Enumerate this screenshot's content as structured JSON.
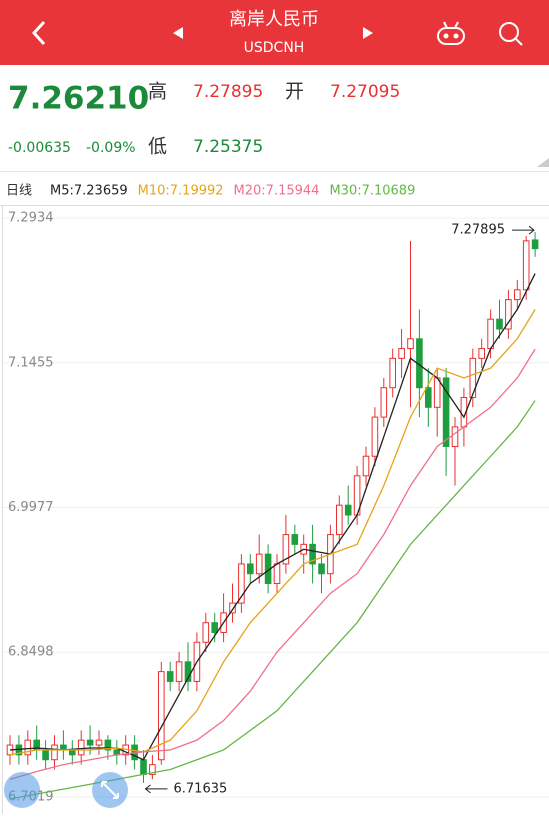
{
  "header": {
    "title": "离岸人民币",
    "subtitle": "USDCNH"
  },
  "quote": {
    "price": "7.26210",
    "change": "-0.00635",
    "change_pct": "-0.09%",
    "high_label": "高",
    "high": "7.27895",
    "open_label": "开",
    "open": "7.27095",
    "low_label": "低",
    "low": "7.25375"
  },
  "chart_data": {
    "type": "candlestick",
    "period": "日线",
    "ylim": [
      6.6907,
      7.3046
    ],
    "yticks": [
      7.2934,
      7.1455,
      6.9977,
      6.8498,
      6.7019
    ],
    "up_color": "#e93030",
    "down_color": "#1e9e3e",
    "open": [
      6.745,
      6.755,
      6.745,
      6.76,
      6.75,
      6.74,
      6.755,
      6.75,
      6.745,
      6.76,
      6.755,
      6.76,
      6.75,
      6.745,
      6.755,
      6.74,
      6.725,
      6.74,
      6.83,
      6.82,
      6.84,
      6.82,
      6.86,
      6.88,
      6.87,
      6.89,
      6.9,
      6.94,
      6.93,
      6.95,
      6.92,
      6.94,
      6.97,
      6.95,
      6.96,
      6.94,
      6.93,
      6.97,
      7.0,
      6.99,
      7.03,
      7.05,
      7.09,
      7.12,
      7.15,
      7.16,
      7.17,
      7.12,
      7.1,
      7.13,
      7.06,
      7.08,
      7.11,
      7.15,
      7.16,
      7.19,
      7.18,
      7.21,
      7.22,
      7.27095
    ],
    "close": [
      6.755,
      6.745,
      6.76,
      6.75,
      6.74,
      6.755,
      6.75,
      6.745,
      6.76,
      6.755,
      6.76,
      6.75,
      6.745,
      6.755,
      6.74,
      6.725,
      6.735,
      6.83,
      6.82,
      6.84,
      6.82,
      6.86,
      6.88,
      6.87,
      6.89,
      6.9,
      6.94,
      6.93,
      6.95,
      6.92,
      6.94,
      6.97,
      6.96,
      6.96,
      6.94,
      6.93,
      6.97,
      7.0,
      6.99,
      7.03,
      7.05,
      7.09,
      7.12,
      7.15,
      7.16,
      7.17,
      7.12,
      7.1,
      7.13,
      7.06,
      7.08,
      7.11,
      7.15,
      7.16,
      7.19,
      7.18,
      7.21,
      7.22,
      7.27,
      7.2621
    ],
    "high": [
      6.765,
      6.765,
      6.77,
      6.775,
      6.76,
      6.765,
      6.77,
      6.76,
      6.77,
      6.775,
      6.77,
      6.765,
      6.76,
      6.765,
      6.765,
      6.75,
      6.745,
      6.84,
      6.84,
      6.85,
      6.86,
      6.87,
      6.89,
      6.89,
      6.91,
      6.92,
      6.95,
      6.95,
      6.97,
      6.96,
      6.95,
      6.99,
      6.98,
      6.97,
      6.98,
      6.95,
      6.98,
      7.01,
      7.02,
      7.04,
      7.06,
      7.1,
      7.13,
      7.16,
      7.18,
      7.27,
      7.2,
      7.14,
      7.14,
      7.14,
      7.09,
      7.12,
      7.16,
      7.17,
      7.2,
      7.21,
      7.22,
      7.23,
      7.275,
      7.27895
    ],
    "low": [
      6.735,
      6.735,
      6.735,
      6.74,
      6.73,
      6.73,
      6.74,
      6.735,
      6.735,
      6.745,
      6.745,
      6.74,
      6.735,
      6.735,
      6.73,
      6.71635,
      6.72,
      6.735,
      6.81,
      6.81,
      6.81,
      6.81,
      6.85,
      6.86,
      6.86,
      6.88,
      6.89,
      6.92,
      6.92,
      6.91,
      6.91,
      6.93,
      6.95,
      6.93,
      6.92,
      6.91,
      6.92,
      6.96,
      6.98,
      6.98,
      7.02,
      7.04,
      7.08,
      7.11,
      7.13,
      7.1,
      7.09,
      7.08,
      7.07,
      7.03,
      7.02,
      7.06,
      7.1,
      7.14,
      7.15,
      7.17,
      7.17,
      7.2,
      7.21,
      7.25375
    ],
    "ma_index": [
      0,
      3,
      6,
      9,
      12,
      15,
      18,
      21,
      24,
      27,
      30,
      33,
      36,
      39,
      42,
      45,
      48,
      51,
      54,
      57,
      59
    ],
    "series": [
      {
        "name": "M5:7.23659",
        "color": "#222222",
        "values": [
          6.75,
          6.752,
          6.75,
          6.752,
          6.752,
          6.74,
          6.79,
          6.84,
          6.88,
          6.92,
          6.94,
          6.955,
          6.95,
          6.99,
          7.07,
          7.15,
          7.13,
          7.09,
          7.16,
          7.2,
          7.23659
        ]
      },
      {
        "name": "M10:7.19992",
        "color": "#e8a317",
        "values": [
          6.745,
          6.75,
          6.75,
          6.75,
          6.752,
          6.748,
          6.76,
          6.79,
          6.84,
          6.88,
          6.91,
          6.94,
          6.95,
          6.96,
          7.02,
          7.09,
          7.14,
          7.13,
          7.14,
          7.17,
          7.19992
        ]
      },
      {
        "name": "M20:7.15944",
        "color": "#f0708a",
        "values": [
          6.72,
          6.728,
          6.735,
          6.74,
          6.745,
          6.748,
          6.75,
          6.76,
          6.78,
          6.81,
          6.85,
          6.88,
          6.91,
          6.93,
          6.97,
          7.02,
          7.06,
          7.08,
          7.1,
          7.13,
          7.15944
        ]
      },
      {
        "name": "M30:7.10689",
        "color": "#62b846",
        "values": [
          6.7,
          6.705,
          6.71,
          6.715,
          6.72,
          6.725,
          6.73,
          6.74,
          6.75,
          6.77,
          6.79,
          6.82,
          6.85,
          6.88,
          6.92,
          6.96,
          6.99,
          7.02,
          7.05,
          7.08,
          7.10689
        ]
      }
    ]
  }
}
